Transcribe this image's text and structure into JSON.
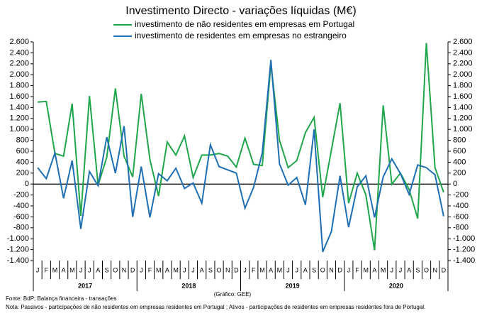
{
  "chart_data": {
    "type": "line",
    "title": "Investimento Directo - variações líquidas (M€)",
    "categories": [
      "J",
      "F",
      "M",
      "A",
      "M",
      "J",
      "J",
      "A",
      "S",
      "O",
      "N",
      "D",
      "J",
      "F",
      "M",
      "A",
      "M",
      "J",
      "J",
      "A",
      "S",
      "O",
      "N",
      "D",
      "J",
      "F",
      "M",
      "A",
      "M",
      "J",
      "J",
      "A",
      "S",
      "O",
      "N",
      "D",
      "J",
      "F",
      "M",
      "A",
      "M",
      "J",
      "J",
      "A",
      "S",
      "O",
      "N",
      "D"
    ],
    "year_groups": [
      "2017",
      "2018",
      "2019",
      "2020"
    ],
    "series": [
      {
        "name": "investimento de não residentes em empresas em Portugal",
        "color": "#1fa64a",
        "values": [
          1500,
          1510,
          560,
          510,
          1470,
          -580,
          1610,
          -20,
          490,
          1750,
          510,
          130,
          1650,
          450,
          -220,
          770,
          530,
          880,
          120,
          530,
          530,
          560,
          510,
          310,
          840,
          360,
          340,
          2200,
          800,
          300,
          430,
          940,
          1220,
          -240,
          620,
          1480,
          -350,
          200,
          -200,
          -1210,
          1440,
          0,
          200,
          -100,
          -630,
          2580,
          300,
          -150
        ]
      },
      {
        "name": "investimento de residentes em empresas no estrangeiro",
        "color": "#1f6fb4",
        "values": [
          300,
          100,
          570,
          -260,
          430,
          -820,
          230,
          -30,
          860,
          200,
          1060,
          -600,
          320,
          -610,
          190,
          60,
          290,
          -80,
          20,
          -350,
          720,
          320,
          260,
          200,
          -440,
          -60,
          570,
          2270,
          370,
          -20,
          120,
          -380,
          1000,
          -1240,
          -870,
          150,
          -790,
          -50,
          150,
          -610,
          130,
          460,
          190,
          -190,
          350,
          300,
          170,
          -590
        ]
      }
    ],
    "ylim": [
      -1400,
      2600
    ],
    "yticks": [
      {
        "value": 2600,
        "label": "2.600"
      },
      {
        "value": 2400,
        "label": "2.400"
      },
      {
        "value": 2200,
        "label": "2.200"
      },
      {
        "value": 2000,
        "label": "2.000"
      },
      {
        "value": 1800,
        "label": "1.800"
      },
      {
        "value": 1600,
        "label": "1.600"
      },
      {
        "value": 1400,
        "label": "1.400"
      },
      {
        "value": 1200,
        "label": "1.200"
      },
      {
        "value": 1000,
        "label": "1.000"
      },
      800,
      600,
      400,
      200,
      0,
      -200,
      -400,
      -600,
      -800,
      {
        "value": -1000,
        "label": "-1.000"
      },
      {
        "value": -1200,
        "label": "-1.200"
      },
      {
        "value": -1400,
        "label": "-1.400"
      }
    ],
    "y2lim": [
      -1400,
      2600
    ],
    "y2ticks": [
      {
        "value": 2600,
        "label": "2.600"
      },
      {
        "value": 2400,
        "label": "2.400"
      },
      {
        "value": 2200,
        "label": "2.200"
      },
      {
        "value": 2000,
        "label": "2.000"
      },
      {
        "value": 1800,
        "label": "1.800"
      },
      {
        "value": 1600,
        "label": "1.600"
      },
      {
        "value": 1400,
        "label": "1.400"
      },
      {
        "value": 1200,
        "label": "1.200"
      },
      {
        "value": 1000,
        "label": "1.000"
      },
      800,
      600,
      400,
      200,
      0,
      -200,
      -400,
      -600,
      -800,
      {
        "value": -1000,
        "label": "-1.000"
      },
      {
        "value": -1200,
        "label": "-1.200"
      },
      {
        "value": -1400,
        "label": "-1.400"
      }
    ],
    "grid": false,
    "legend": "top",
    "source": "Fonte: BdP; Balança financeira - transações",
    "note": "Nota: Passivos - participações de não residentes em empresas residentes em Portugal ; Ativos - participações de residentes em empresas residentes fora de Portugal.",
    "credit": "(Gráfico: GEE)"
  }
}
